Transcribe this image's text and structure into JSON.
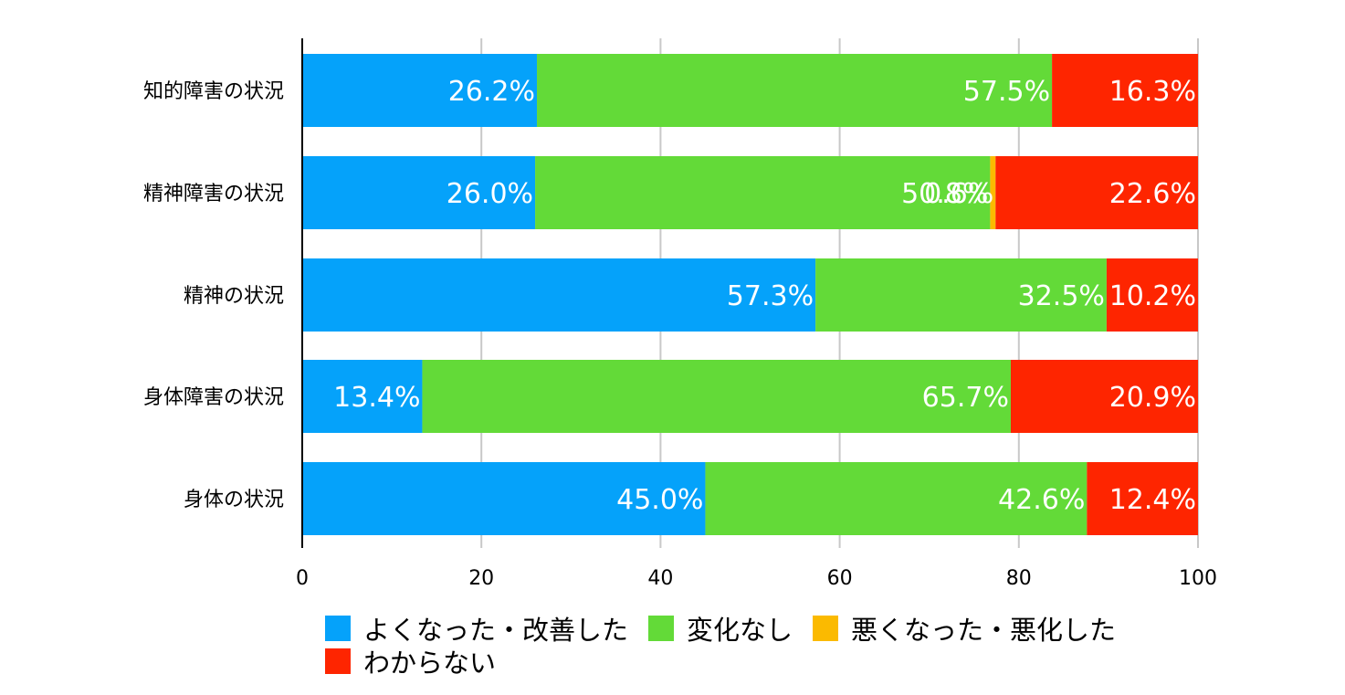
{
  "chart_data": {
    "type": "bar",
    "orientation": "horizontal",
    "stacked": true,
    "categories": [
      "知的障害の状況",
      "精神障害の状況",
      "精神の状況",
      "身体障害の状況",
      "身体の状況"
    ],
    "series": [
      {
        "name": "よくなった・改善した",
        "color": "#05A2FA",
        "values": [
          26.2,
          26.0,
          57.3,
          13.4,
          45.0
        ],
        "labels": [
          "26.2%",
          "26.0%",
          "57.3%",
          "13.4%",
          "45.0%"
        ]
      },
      {
        "name": "変化なし",
        "color": "#63DA38",
        "values": [
          57.5,
          50.8,
          32.5,
          65.7,
          42.6
        ],
        "labels": [
          "57.5%",
          "50.8%",
          "32.5%",
          "65.7%",
          "42.6%"
        ]
      },
      {
        "name": "悪くなった・悪化した",
        "color": "#FBBA00",
        "values": [
          0,
          0.6,
          0,
          0,
          0
        ],
        "labels": [
          "",
          "0.6%",
          "",
          "",
          ""
        ]
      },
      {
        "name": "わからない",
        "color": "#FE2500",
        "values": [
          16.3,
          22.6,
          10.2,
          20.9,
          12.4
        ],
        "labels": [
          "16.3%",
          "22.6%",
          "10.2%",
          "20.9%",
          "12.4%"
        ]
      }
    ],
    "xlim": [
      0,
      100
    ],
    "xticks": [
      0,
      20,
      40,
      60,
      80,
      100
    ],
    "grid": true,
    "legend_position": "bottom"
  }
}
